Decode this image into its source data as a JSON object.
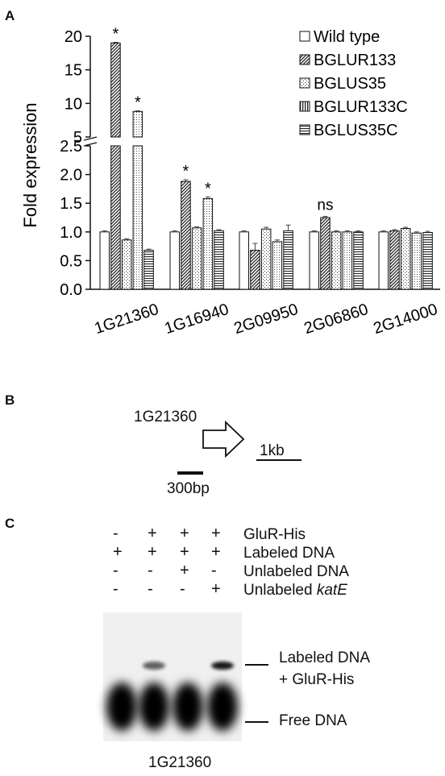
{
  "panels": {
    "a_letter": "A",
    "b_letter": "B",
    "c_letter": "C"
  },
  "chart_data": {
    "type": "bar",
    "ylabel": "Fold expression",
    "categories": [
      "1G21360",
      "1G16940",
      "2G09950",
      "2G06860",
      "2G14000"
    ],
    "series": [
      {
        "name": "Wild type",
        "values": [
          1.0,
          1.0,
          1.0,
          1.0,
          1.0
        ]
      },
      {
        "name": "BGLUR133",
        "values": [
          19.0,
          1.88,
          0.68,
          1.25,
          1.02
        ]
      },
      {
        "name": "BGLUS35",
        "values": [
          0.86,
          1.07,
          1.05,
          1.0,
          1.06
        ]
      },
      {
        "name": "BGLUR133C",
        "values": [
          8.8,
          1.58,
          0.83,
          1.0,
          0.98
        ]
      },
      {
        "name": "BGLUS35C",
        "values": [
          0.68,
          1.02,
          1.02,
          1.0,
          0.99
        ]
      }
    ],
    "errors": [
      [
        0.02,
        0.02,
        0.02,
        0.02,
        0.02
      ],
      [
        0.1,
        0.03,
        0.12,
        0.02,
        0.02
      ],
      [
        0.02,
        0.02,
        0.03,
        0.02,
        0.02
      ],
      [
        0.1,
        0.03,
        0.03,
        0.02,
        0.02
      ],
      [
        0.02,
        0.02,
        0.1,
        0.02,
        0.02
      ]
    ],
    "axis_break": {
      "lower_range": [
        0,
        2.5
      ],
      "upper_range": [
        5,
        20
      ]
    },
    "yticks_lower": [
      "0.0",
      "0.5",
      "1.0",
      "1.5",
      "2.0",
      "2.5"
    ],
    "yticks_upper": [
      "5",
      "10",
      "15",
      "20"
    ],
    "annotations": [
      {
        "category": "1G21360",
        "series": "BGLUR133",
        "text": "*"
      },
      {
        "category": "1G21360",
        "series": "BGLUR133C",
        "text": "*"
      },
      {
        "category": "1G16940",
        "series": "BGLUR133",
        "text": "*"
      },
      {
        "category": "1G16940",
        "series": "BGLUR133C",
        "text": "*"
      },
      {
        "category": "2G06860",
        "series": "BGLUR133",
        "text": "ns"
      }
    ],
    "legend_position": "top-right"
  },
  "panel_b": {
    "gene_label": "1G21360",
    "scale_large": "1kb",
    "scale_small": "300bp"
  },
  "panel_c": {
    "rows": [
      {
        "label": "GluR-His",
        "lanes": [
          "-",
          "+",
          "+",
          "+"
        ]
      },
      {
        "label": "Labeled DNA",
        "lanes": [
          "+",
          "+",
          "+",
          "+"
        ]
      },
      {
        "label": "Unlabeled DNA",
        "lanes": [
          "-",
          "-",
          "+",
          "-"
        ]
      },
      {
        "label_prefix": "Unlabeled ",
        "label_italic": "katE",
        "lanes": [
          "-",
          "-",
          "-",
          "+"
        ]
      }
    ],
    "band_upper_label_1": "Labeled DNA",
    "band_upper_label_2": "+ GluR-His",
    "band_lower_label": "Free DNA",
    "gel_caption": "1G21360",
    "shifted_band_intensity": [
      0.0,
      0.6,
      0.0,
      0.9
    ]
  }
}
